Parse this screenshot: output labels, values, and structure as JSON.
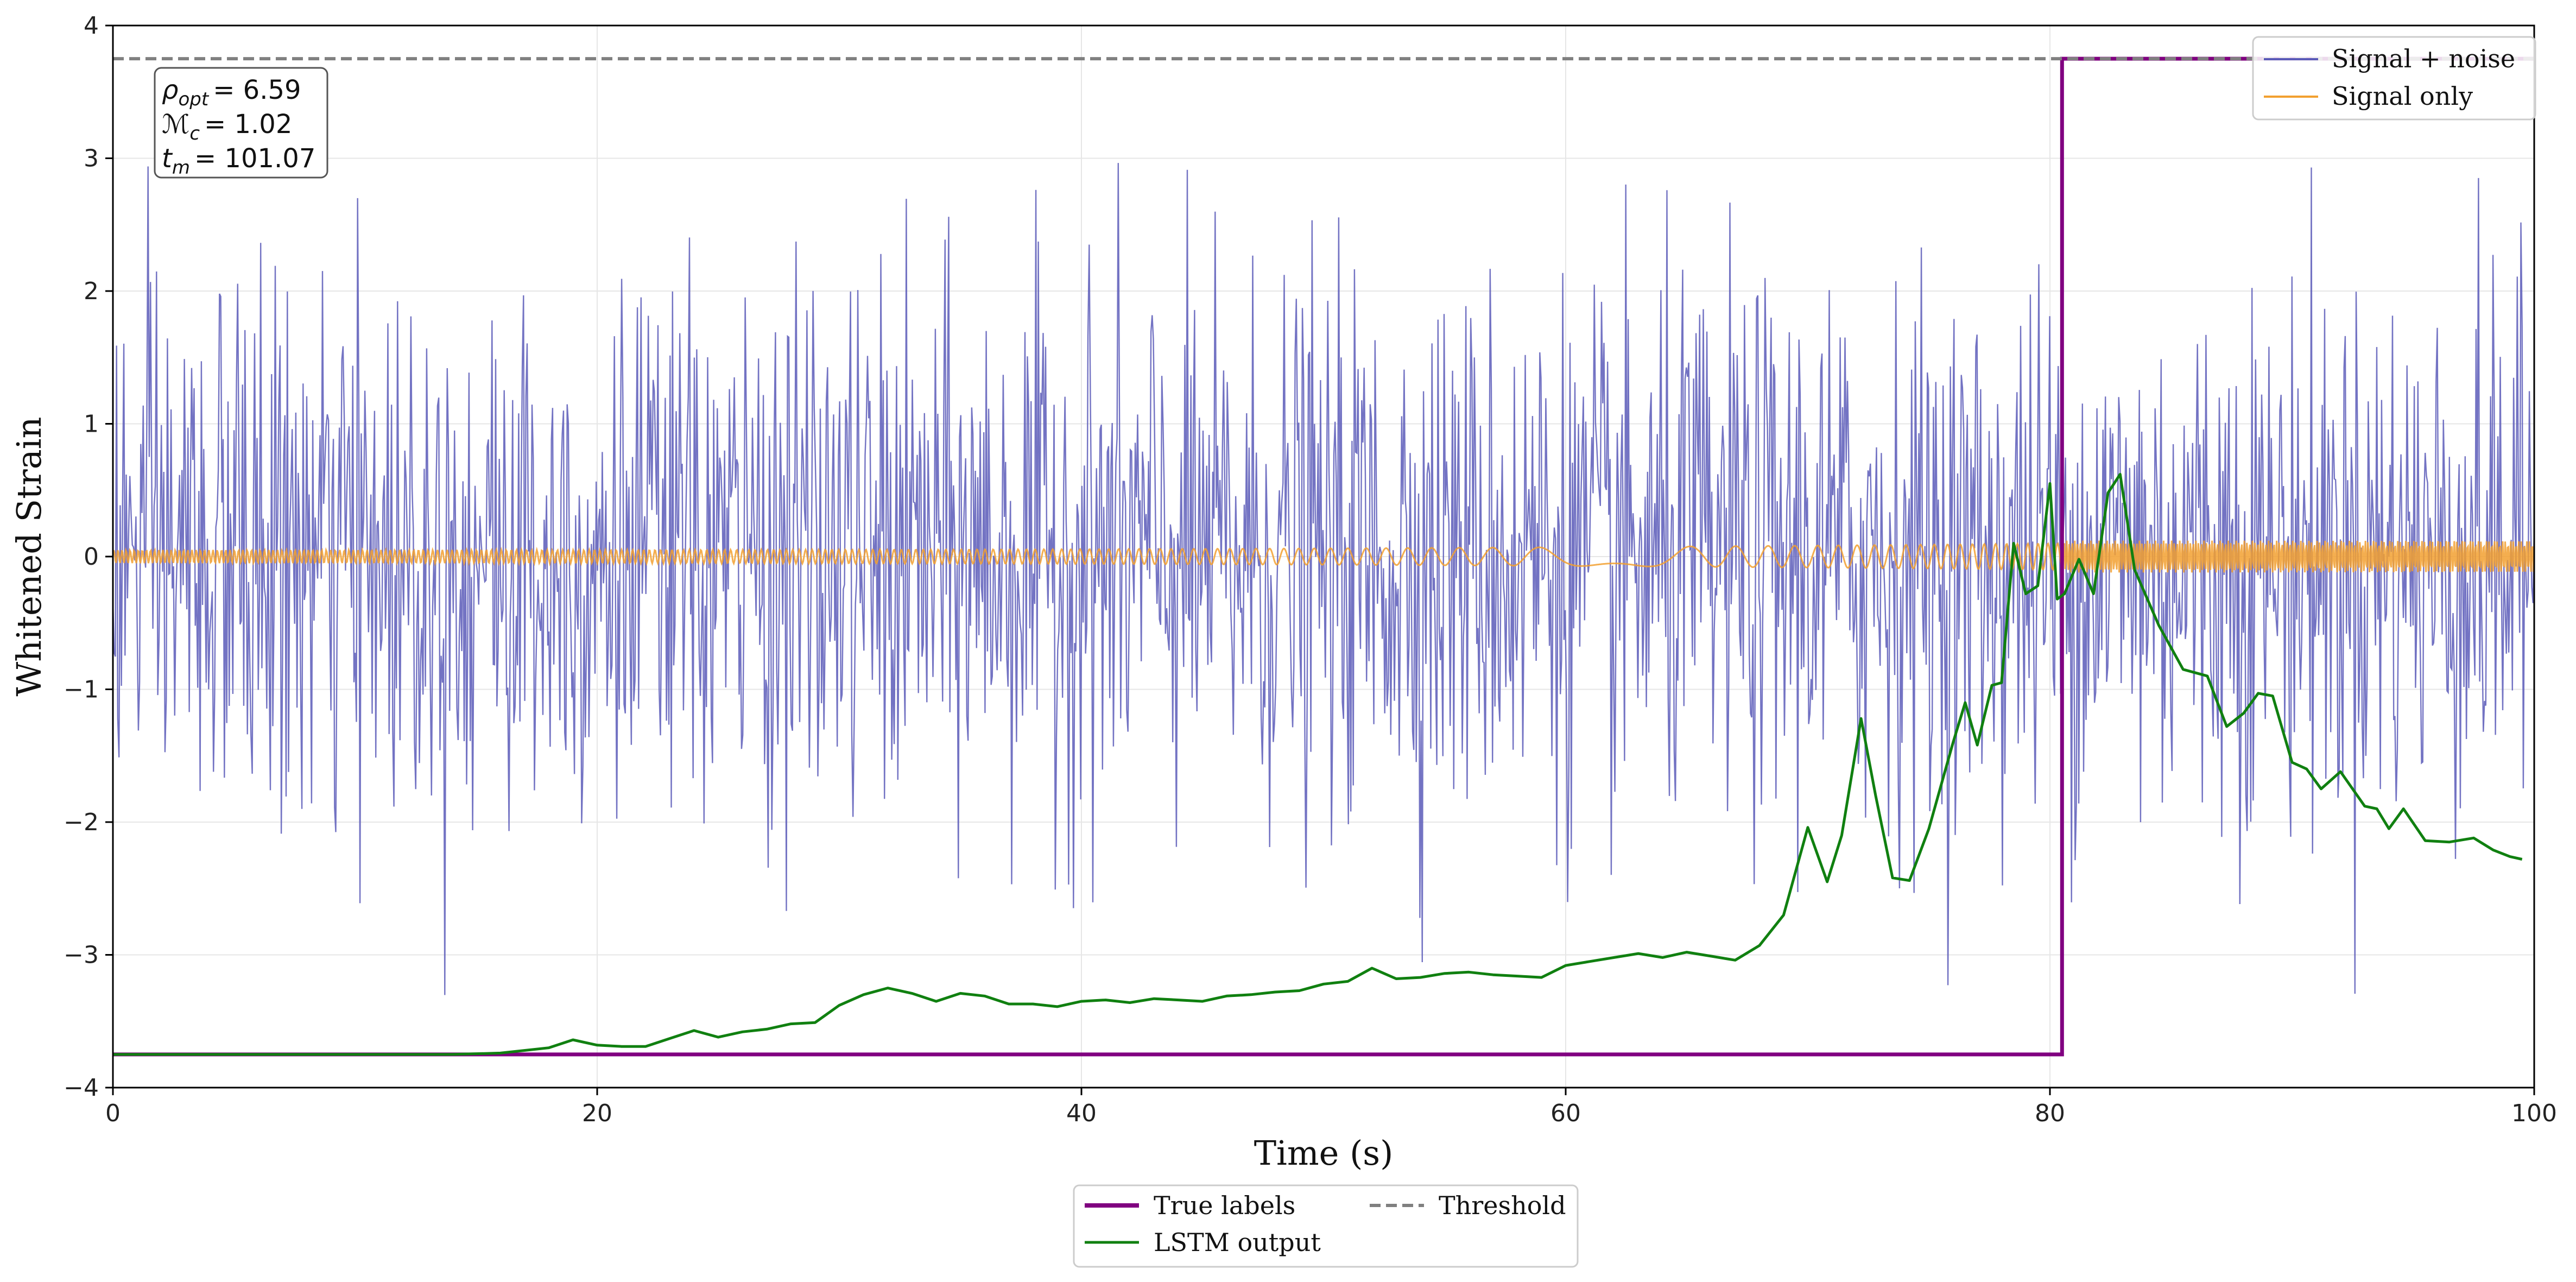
{
  "chart_data": {
    "type": "line",
    "xlabel": "Time (s)",
    "ylabel": "Whitened Strain",
    "xlim": [
      0,
      100
    ],
    "ylim": [
      -4,
      4
    ],
    "xticks": [
      0,
      20,
      40,
      60,
      80,
      100
    ],
    "yticks": [
      -4,
      -3,
      -2,
      -1,
      0,
      1,
      2,
      3,
      4
    ],
    "xtick_labels": [
      "0",
      "20",
      "40",
      "60",
      "80",
      "100"
    ],
    "ytick_labels": [
      "−4",
      "−3",
      "−2",
      "−1",
      "0",
      "1",
      "2",
      "3",
      "4"
    ],
    "grid": true,
    "annotation": {
      "rho_symbol": "ρ",
      "rho_sub": "opt",
      "rho_value": "= 6.59",
      "mc_symbol": "ℳ",
      "mc_sub": "c",
      "mc_value": "= 1.02",
      "tm_symbol": "t",
      "tm_sub": "m",
      "tm_value": "= 101.07"
    },
    "legend_upper": [
      "Signal + noise",
      "Signal only"
    ],
    "legend_lower": [
      "True labels",
      "LSTM output",
      "Threshold"
    ],
    "colors": {
      "noise": "#5a5ab8",
      "signal": "#f2a030",
      "true_labels": "#800080",
      "lstm": "#108010",
      "threshold": "#808080"
    },
    "series": [
      {
        "name": "Signal + noise",
        "description": "whitened noise, approx. Gaussian, std ~1.0, peaks up to about +/-3.1",
        "noise_std": 1.0,
        "n_points": 2000
      },
      {
        "name": "Signal only",
        "description": "chirp oscillation, amplitude ~0.05 early rising to ~0.12 after merger",
        "amplitude_early": 0.05,
        "amplitude_late": 0.12
      },
      {
        "name": "True labels",
        "x": [
          0,
          80.5,
          80.5,
          100
        ],
        "y": [
          -3.75,
          -3.75,
          3.75,
          3.75
        ]
      },
      {
        "name": "LSTM output",
        "x": [
          0,
          14,
          16,
          18,
          19,
          20,
          21,
          22,
          23,
          24,
          25,
          26,
          27,
          28,
          29,
          30,
          31,
          32,
          33,
          34,
          35,
          36,
          37,
          38,
          39,
          40,
          41,
          42,
          43,
          44,
          45,
          46,
          47,
          48,
          49,
          50,
          51,
          52,
          53,
          54,
          55,
          56,
          57,
          58,
          59,
          60,
          61,
          62,
          63,
          64,
          65,
          66,
          67,
          68,
          69,
          70,
          70.8,
          71.4,
          72.2,
          72.8,
          73.5,
          74.2,
          75,
          76,
          76.5,
          77,
          77.6,
          78,
          78.5,
          79,
          79.5,
          80,
          80.3,
          80.6,
          81.2,
          81.8,
          82.4,
          82.9,
          83.5,
          84.5,
          85.5,
          86.5,
          87.3,
          88,
          88.6,
          89.2,
          90,
          90.6,
          91.2,
          92,
          93,
          93.5,
          94,
          94.6,
          95.5,
          96.5,
          97.5,
          98.3,
          99,
          99.5
        ],
        "y": [
          -3.75,
          -3.75,
          -3.74,
          -3.7,
          -3.64,
          -3.68,
          -3.69,
          -3.69,
          -3.63,
          -3.57,
          -3.62,
          -3.58,
          -3.56,
          -3.52,
          -3.51,
          -3.38,
          -3.3,
          -3.25,
          -3.29,
          -3.35,
          -3.29,
          -3.31,
          -3.37,
          -3.37,
          -3.39,
          -3.35,
          -3.34,
          -3.36,
          -3.33,
          -3.34,
          -3.35,
          -3.31,
          -3.3,
          -3.28,
          -3.27,
          -3.22,
          -3.2,
          -3.1,
          -3.18,
          -3.17,
          -3.14,
          -3.13,
          -3.15,
          -3.16,
          -3.17,
          -3.08,
          -3.05,
          -3.02,
          -2.99,
          -3.02,
          -2.98,
          -3.01,
          -3.04,
          -2.93,
          -2.7,
          -2.04,
          -2.45,
          -2.1,
          -1.22,
          -1.8,
          -2.42,
          -2.44,
          -2.05,
          -1.4,
          -1.1,
          -1.42,
          -0.97,
          -0.95,
          0.1,
          -0.28,
          -0.22,
          0.55,
          -0.32,
          -0.28,
          -0.02,
          -0.28,
          0.48,
          0.62,
          -0.1,
          -0.52,
          -0.85,
          -0.9,
          -1.28,
          -1.18,
          -1.03,
          -1.05,
          -1.55,
          -1.6,
          -1.75,
          -1.62,
          -1.88,
          -1.9,
          -2.05,
          -1.9,
          -2.14,
          -2.15,
          -2.12,
          -2.21,
          -2.26,
          -2.28
        ]
      },
      {
        "name": "Threshold",
        "y_value": 3.75
      }
    ]
  }
}
